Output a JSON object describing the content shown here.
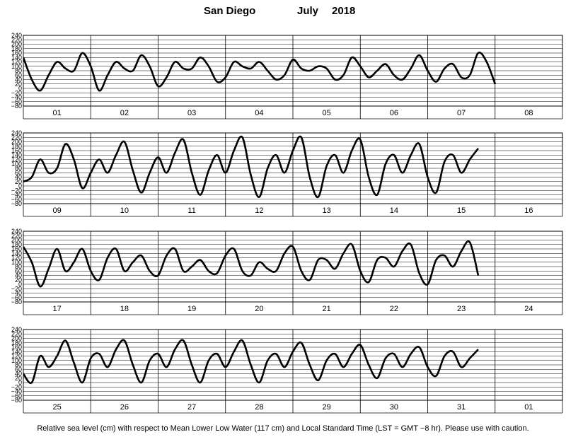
{
  "title": {
    "location": "San Diego",
    "month": "July",
    "year": "2018"
  },
  "footnote": "Relative sea level (cm) with respect to Mean Lower Low Water (117 cm) and Local Standard Time (LST = GMT −8 hr). Please use with caution.",
  "chart_data": {
    "type": "line",
    "ylabel": "",
    "ylim": [
      -80,
      240
    ],
    "yticks": [
      -80,
      -60,
      -40,
      -20,
      0,
      20,
      40,
      60,
      80,
      100,
      120,
      140,
      160,
      180,
      200,
      220,
      240
    ],
    "ytick_labels": [
      "−80",
      "−60",
      "−40",
      "−20",
      "0",
      "20",
      "40",
      "60",
      "80",
      "100",
      "120",
      "140",
      "160",
      "180",
      "200",
      "220",
      "240"
    ],
    "grid": true,
    "line_color": "#000000",
    "hours_per_point": 3,
    "panels": [
      {
        "days": [
          "01",
          "02",
          "03",
          "04",
          "05",
          "06",
          "07",
          "08"
        ],
        "values": [
          140,
          40,
          -10,
          60,
          120,
          90,
          80,
          160,
          100,
          -10,
          60,
          120,
          90,
          80,
          150,
          100,
          10,
          50,
          120,
          90,
          90,
          140,
          100,
          30,
          50,
          120,
          100,
          90,
          120,
          80,
          40,
          60,
          130,
          90,
          80,
          100,
          90,
          40,
          60,
          140,
          100,
          50,
          80,
          110,
          60,
          40,
          90,
          150,
          80,
          30,
          90,
          110,
          50,
          60,
          160,
          120,
          20
        ]
      },
      {
        "days": [
          "09",
          "10",
          "11",
          "12",
          "13",
          "14",
          "15",
          "16"
        ],
        "values": [
          20,
          40,
          120,
          60,
          80,
          190,
          120,
          -10,
          60,
          120,
          60,
          140,
          200,
          70,
          -30,
          60,
          130,
          60,
          150,
          210,
          60,
          -40,
          70,
          140,
          60,
          160,
          220,
          50,
          -50,
          80,
          140,
          60,
          160,
          220,
          40,
          -50,
          90,
          140,
          60,
          160,
          210,
          40,
          -40,
          100,
          140,
          60,
          140,
          190,
          40,
          -30,
          110,
          140,
          60,
          120,
          170
        ]
      },
      {
        "days": [
          "17",
          "18",
          "19",
          "20",
          "21",
          "22",
          "23",
          "24"
        ],
        "values": [
          170,
          100,
          -10,
          70,
          160,
          60,
          100,
          160,
          60,
          20,
          120,
          160,
          60,
          100,
          130,
          60,
          40,
          130,
          160,
          60,
          80,
          110,
          60,
          50,
          130,
          160,
          60,
          40,
          100,
          70,
          60,
          140,
          170,
          60,
          20,
          110,
          110,
          70,
          140,
          180,
          60,
          10,
          110,
          120,
          80,
          150,
          180,
          50,
          0,
          110,
          130,
          80,
          150,
          190,
          40
        ]
      },
      {
        "days": [
          "25",
          "26",
          "27",
          "28",
          "29",
          "30",
          "31",
          "01"
        ],
        "values": [
          40,
          0,
          120,
          70,
          120,
          190,
          90,
          0,
          110,
          130,
          70,
          150,
          190,
          80,
          0,
          100,
          130,
          70,
          150,
          190,
          80,
          0,
          100,
          130,
          70,
          140,
          190,
          80,
          0,
          100,
          130,
          70,
          140,
          180,
          80,
          10,
          100,
          130,
          70,
          130,
          170,
          80,
          20,
          110,
          130,
          70,
          130,
          160,
          70,
          30,
          120,
          140,
          70,
          110,
          150
        ]
      }
    ]
  }
}
